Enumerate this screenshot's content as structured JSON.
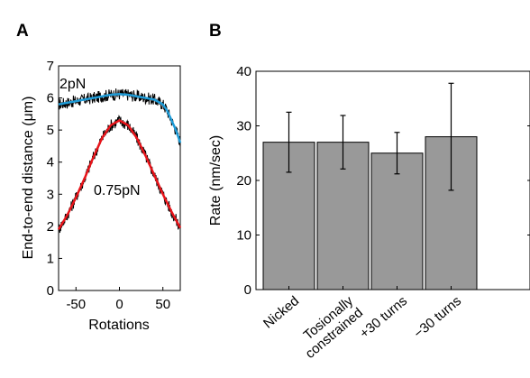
{
  "panels": [
    {
      "label": "A"
    },
    {
      "label": "B"
    }
  ],
  "chart_data": [
    {
      "type": "line",
      "panel": "A",
      "xlabel": "Rotations",
      "ylabel": "End-to-end distance (μm)",
      "xlim": [
        -70,
        70
      ],
      "ylim": [
        0,
        7
      ],
      "xticks": [
        -50,
        0,
        50
      ],
      "yticks": [
        0,
        1,
        2,
        3,
        4,
        5,
        6,
        7
      ],
      "grid": false,
      "series": [
        {
          "name": "2pN",
          "color": "#1e9bd7",
          "raw_color": "#000000",
          "x": [
            -70,
            -60,
            -50,
            -40,
            -30,
            -20,
            -10,
            0,
            10,
            20,
            30,
            40,
            50,
            55,
            60,
            65,
            70
          ],
          "y": [
            5.8,
            5.85,
            5.9,
            5.95,
            6.0,
            6.05,
            6.1,
            6.12,
            6.1,
            6.05,
            6.0,
            5.95,
            5.8,
            5.6,
            5.3,
            5.0,
            4.6
          ]
        },
        {
          "name": "0.75pN",
          "color": "#e8141a",
          "raw_color": "#000000",
          "x": [
            -70,
            -60,
            -50,
            -40,
            -30,
            -20,
            -10,
            0,
            10,
            20,
            30,
            40,
            50,
            60,
            70
          ],
          "y": [
            1.9,
            2.35,
            2.9,
            3.5,
            4.15,
            4.75,
            5.15,
            5.3,
            5.15,
            4.75,
            4.2,
            3.6,
            3.0,
            2.45,
            1.95
          ]
        }
      ]
    },
    {
      "type": "bar",
      "panel": "B",
      "ylabel": "Rate (nm/sec)",
      "ylim": [
        0,
        40
      ],
      "yticks": [
        0,
        10,
        20,
        30,
        40
      ],
      "grid": false,
      "categories": [
        "Nicked",
        "Tosionally constrained",
        "+30 turns",
        "−30 turns"
      ],
      "category_lines": [
        [
          "Nicked"
        ],
        [
          "Tosionally",
          "constrained"
        ],
        [
          "+30 turns"
        ],
        [
          "−30 turns"
        ]
      ],
      "values": [
        27,
        27,
        25,
        28
      ],
      "errors": [
        5.5,
        4.9,
        3.8,
        9.8
      ],
      "bar_color": "#999999"
    }
  ]
}
